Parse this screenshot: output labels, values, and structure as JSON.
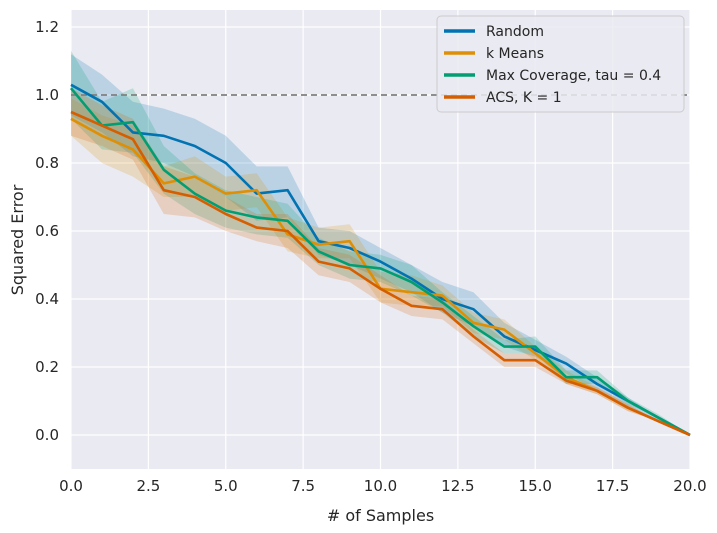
{
  "chart_data": {
    "type": "line",
    "title": "",
    "xlabel": "# of Samples",
    "ylabel": "Squared Error",
    "xlim": [
      0,
      20
    ],
    "ylim": [
      -0.1,
      1.25
    ],
    "xticks": [
      0,
      2.5,
      5,
      7.5,
      10,
      12.5,
      15,
      17.5,
      20
    ],
    "xtick_labels": [
      "0.0",
      "2.5",
      "5.0",
      "7.5",
      "10.0",
      "12.5",
      "15.0",
      "17.5",
      "20.0"
    ],
    "yticks": [
      0,
      0.2,
      0.4,
      0.6,
      0.8,
      1.0,
      1.2
    ],
    "ytick_labels": [
      "0.0",
      "0.2",
      "0.4",
      "0.6",
      "0.8",
      "1.0",
      "1.2"
    ],
    "grid": true,
    "legend_position": "top-right",
    "reference_line": {
      "y": 1.0,
      "style": "dashed",
      "color": "#808080"
    },
    "x": [
      0,
      1,
      2,
      3,
      4,
      5,
      6,
      7,
      8,
      9,
      10,
      11,
      12,
      13,
      14,
      15,
      16,
      17,
      18,
      19,
      20
    ],
    "series": [
      {
        "name": "Random",
        "color": "#0173b2",
        "values": [
          1.03,
          0.98,
          0.89,
          0.88,
          0.85,
          0.8,
          0.71,
          0.72,
          0.57,
          0.55,
          0.51,
          0.46,
          0.4,
          0.37,
          0.29,
          0.25,
          0.21,
          0.15,
          0.1,
          0.05,
          0.0
        ],
        "lower": [
          0.94,
          0.89,
          0.82,
          0.8,
          0.76,
          0.7,
          0.63,
          0.64,
          0.53,
          0.5,
          0.46,
          0.42,
          0.36,
          0.32,
          0.26,
          0.23,
          0.18,
          0.13,
          0.08,
          0.04,
          0.0
        ],
        "upper": [
          1.12,
          1.06,
          0.98,
          0.96,
          0.93,
          0.88,
          0.79,
          0.79,
          0.61,
          0.6,
          0.55,
          0.5,
          0.45,
          0.42,
          0.33,
          0.28,
          0.23,
          0.17,
          0.11,
          0.05,
          0.0
        ]
      },
      {
        "name": "k Means",
        "color": "#de8f05",
        "values": [
          0.93,
          0.88,
          0.84,
          0.74,
          0.76,
          0.71,
          0.72,
          0.59,
          0.56,
          0.57,
          0.43,
          0.42,
          0.41,
          0.33,
          0.31,
          0.24,
          0.17,
          0.13,
          0.08,
          0.04,
          0.0
        ],
        "lower": [
          0.88,
          0.8,
          0.76,
          0.7,
          0.7,
          0.66,
          0.67,
          0.54,
          0.52,
          0.52,
          0.39,
          0.38,
          0.38,
          0.3,
          0.28,
          0.22,
          0.15,
          0.12,
          0.07,
          0.04,
          0.0
        ],
        "upper": [
          0.99,
          0.94,
          0.91,
          0.79,
          0.82,
          0.76,
          0.77,
          0.64,
          0.61,
          0.62,
          0.48,
          0.47,
          0.44,
          0.36,
          0.34,
          0.26,
          0.19,
          0.14,
          0.09,
          0.04,
          0.0
        ]
      },
      {
        "name": "Max Coverage, tau = 0.4",
        "color": "#029e73",
        "values": [
          1.02,
          0.91,
          0.92,
          0.78,
          0.71,
          0.66,
          0.64,
          0.63,
          0.54,
          0.5,
          0.49,
          0.45,
          0.39,
          0.32,
          0.26,
          0.26,
          0.17,
          0.17,
          0.1,
          0.05,
          0.0
        ],
        "lower": [
          0.93,
          0.84,
          0.83,
          0.71,
          0.65,
          0.61,
          0.59,
          0.58,
          0.5,
          0.46,
          0.45,
          0.41,
          0.36,
          0.29,
          0.24,
          0.24,
          0.15,
          0.15,
          0.09,
          0.05,
          0.0
        ],
        "upper": [
          1.13,
          0.98,
          1.02,
          0.85,
          0.77,
          0.72,
          0.7,
          0.68,
          0.58,
          0.54,
          0.53,
          0.5,
          0.42,
          0.35,
          0.28,
          0.29,
          0.19,
          0.19,
          0.11,
          0.06,
          0.0
        ]
      },
      {
        "name": "ACS, K = 1",
        "color": "#d55e00",
        "values": [
          0.95,
          0.91,
          0.87,
          0.72,
          0.7,
          0.65,
          0.61,
          0.6,
          0.51,
          0.49,
          0.43,
          0.38,
          0.37,
          0.29,
          0.22,
          0.22,
          0.16,
          0.13,
          0.08,
          0.04,
          0.0
        ],
        "lower": [
          0.88,
          0.85,
          0.81,
          0.65,
          0.64,
          0.6,
          0.57,
          0.55,
          0.47,
          0.45,
          0.39,
          0.35,
          0.34,
          0.27,
          0.2,
          0.2,
          0.15,
          0.12,
          0.07,
          0.04,
          0.0
        ],
        "upper": [
          1.02,
          0.97,
          0.93,
          0.79,
          0.76,
          0.7,
          0.65,
          0.65,
          0.55,
          0.53,
          0.47,
          0.41,
          0.4,
          0.31,
          0.24,
          0.24,
          0.17,
          0.14,
          0.09,
          0.04,
          0.0
        ]
      }
    ]
  }
}
